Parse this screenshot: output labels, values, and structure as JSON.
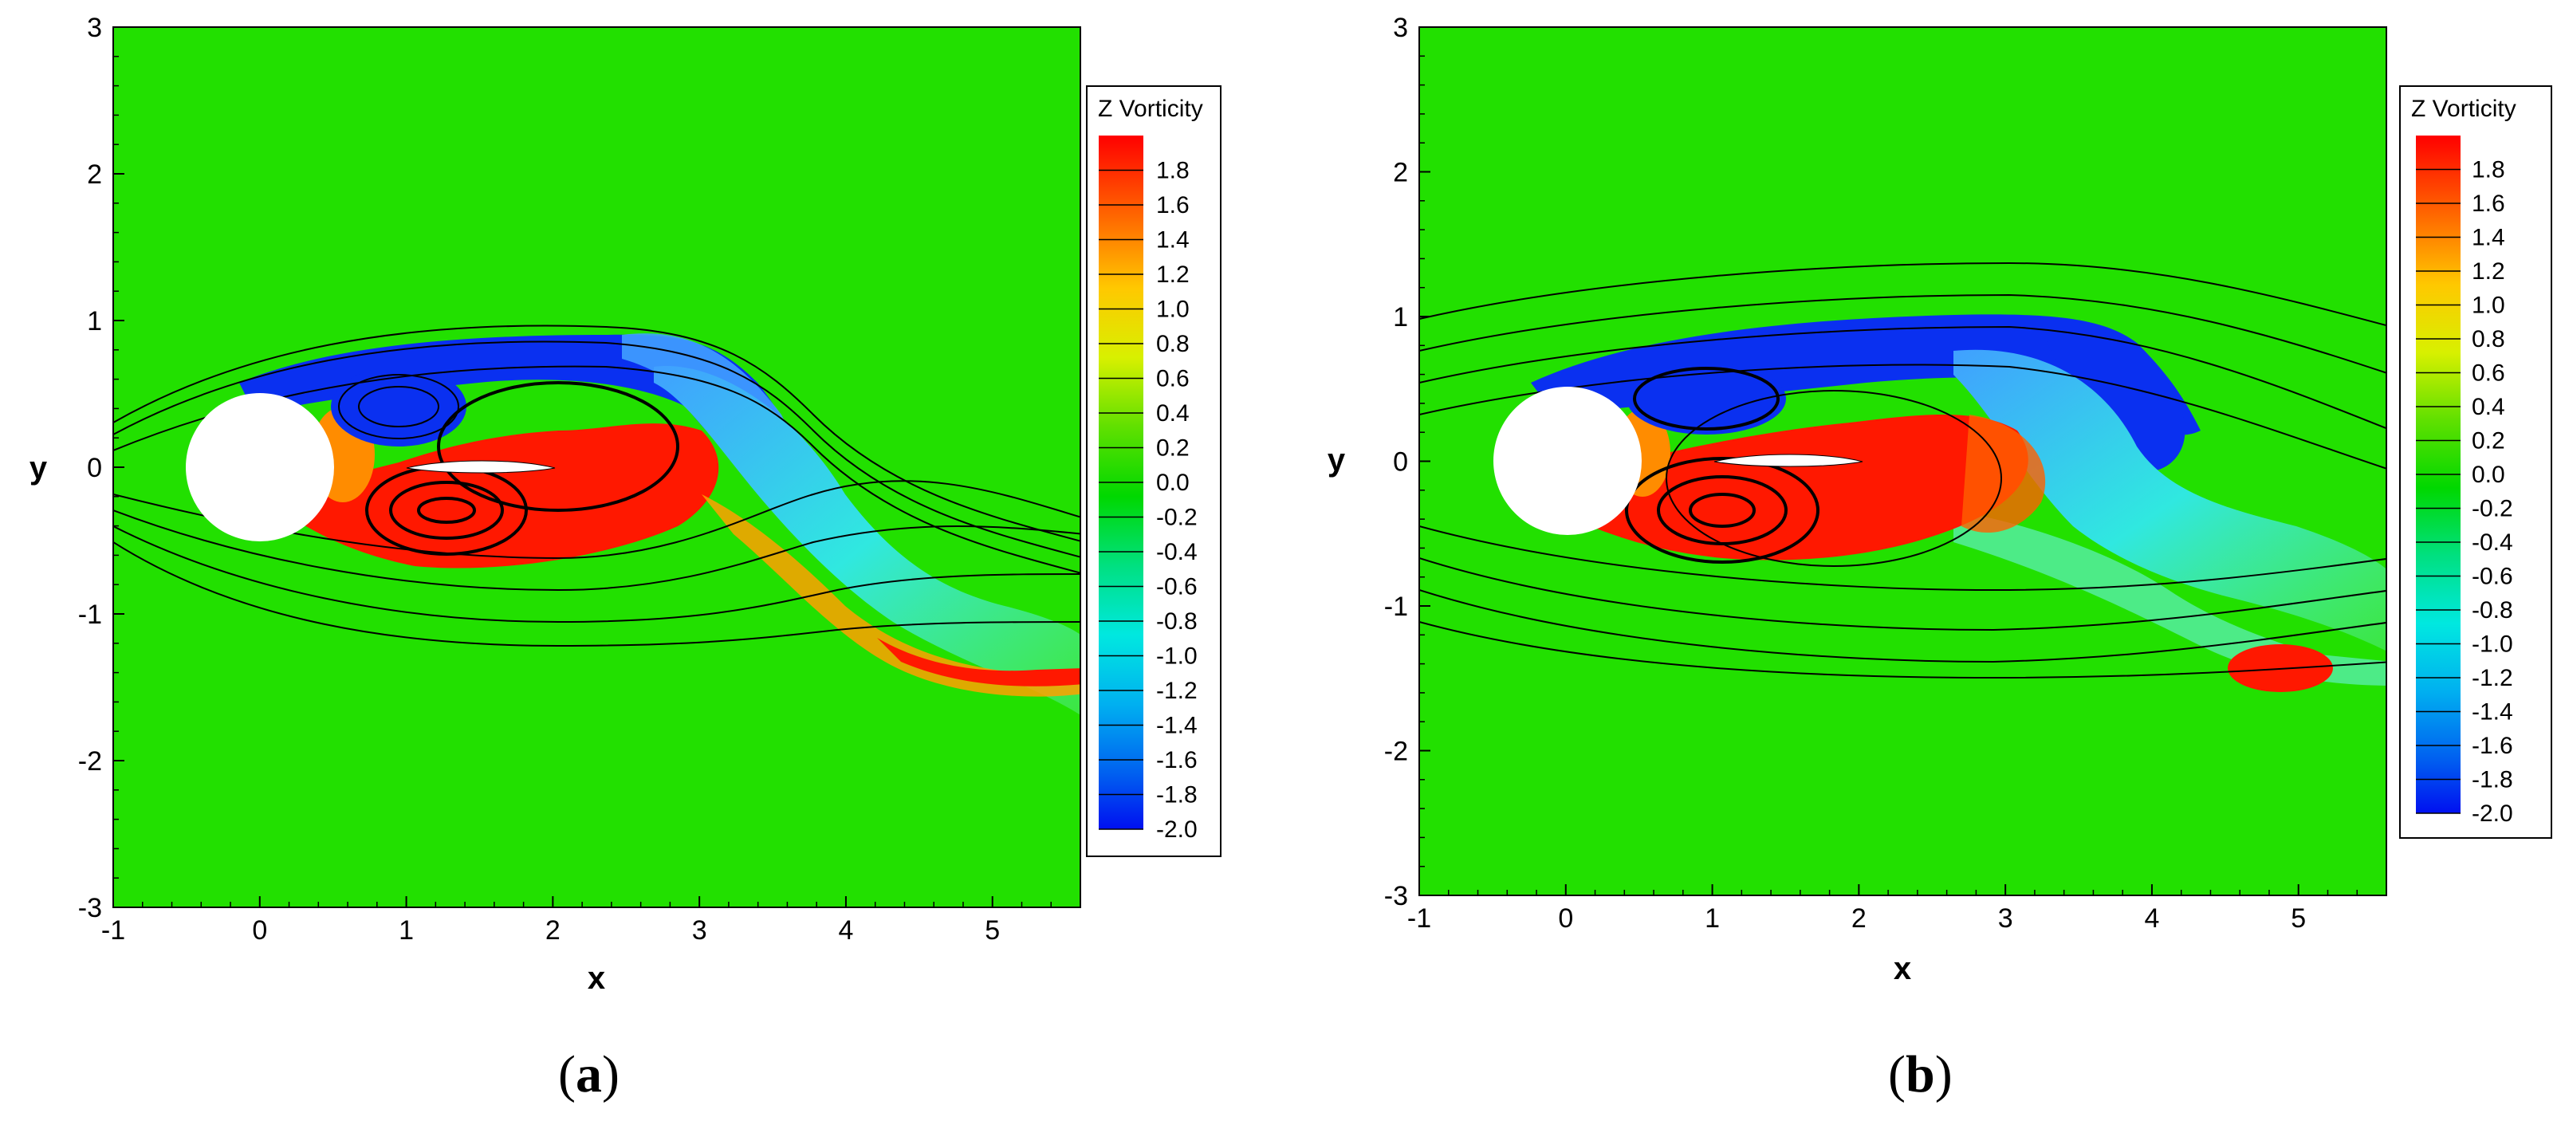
{
  "chart_data": [
    {
      "type": "heatmap",
      "panel_label": "a",
      "xlabel": "x",
      "ylabel": "y",
      "xlim": [
        -1,
        5.6
      ],
      "ylim": [
        -3,
        3
      ],
      "x_ticks": [
        "-1",
        "0",
        "1",
        "2",
        "3",
        "4",
        "5"
      ],
      "y_ticks": [
        "-3",
        "-2",
        "-1",
        "0",
        "1",
        "2",
        "3"
      ],
      "colorbar": {
        "title": "Z Vorticity",
        "ticks": [
          "1.8",
          "1.6",
          "1.4",
          "1.2",
          "1.0",
          "0.8",
          "0.6",
          "0.4",
          "0.2",
          "0.0",
          "-0.2",
          "-0.4",
          "-0.6",
          "-0.8",
          "-1.0",
          "-1.2",
          "-1.4",
          "-1.6",
          "-1.8",
          "-2.0"
        ],
        "range": [
          -2.0,
          2.0
        ]
      },
      "cylinder": {
        "center": [
          0,
          0
        ],
        "radius": 0.5
      },
      "plate": {
        "x_start": 1.0,
        "x_end": 2.0,
        "y": 0.0
      },
      "vortices": [
        {
          "sign": "negative",
          "center": [
            0.95,
            0.4
          ]
        },
        {
          "sign": "positive",
          "center": [
            1.3,
            -0.3
          ]
        },
        {
          "sign": "positive",
          "center": [
            2.0,
            0.05
          ]
        }
      ]
    },
    {
      "type": "heatmap",
      "panel_label": "b",
      "xlabel": "x",
      "ylabel": "y",
      "xlim": [
        -1,
        5.6
      ],
      "ylim": [
        -3,
        3
      ],
      "x_ticks": [
        "-1",
        "0",
        "1",
        "2",
        "3",
        "4",
        "5"
      ],
      "y_ticks": [
        "-3",
        "-2",
        "-1",
        "0",
        "1",
        "2",
        "3"
      ],
      "colorbar": {
        "title": "Z Vorticity",
        "ticks": [
          "1.8",
          "1.6",
          "1.4",
          "1.2",
          "1.0",
          "0.8",
          "0.6",
          "0.4",
          "0.2",
          "0.0",
          "-0.2",
          "-0.4",
          "-0.6",
          "-0.8",
          "-1.0",
          "-1.2",
          "-1.4",
          "-1.6",
          "-1.8",
          "-2.0"
        ],
        "range": [
          -2.0,
          2.0
        ]
      },
      "cylinder": {
        "center": [
          0,
          0
        ],
        "radius": 0.5
      },
      "plate": {
        "x_start": 1.0,
        "x_end": 2.0,
        "y": 0.0
      },
      "vortices": [
        {
          "sign": "negative",
          "center": [
            0.95,
            0.45
          ]
        },
        {
          "sign": "positive",
          "center": [
            1.2,
            -0.3
          ]
        },
        {
          "sign": "positive",
          "center": [
            5.0,
            -1.45
          ]
        }
      ]
    }
  ],
  "colors": {
    "background_field": "#22e000",
    "positive_vorticity": "#ff1800",
    "negative_vorticity": "#0a30f0",
    "cyan_wake": "#30e8e0"
  }
}
